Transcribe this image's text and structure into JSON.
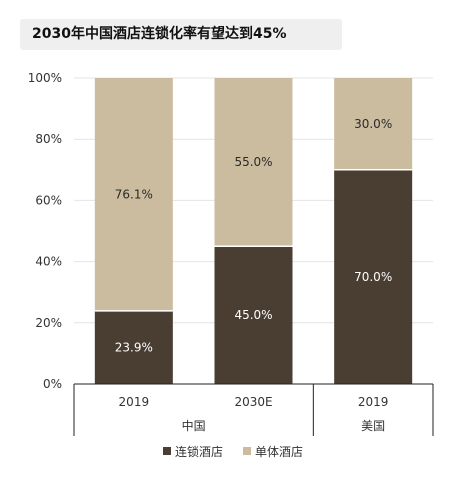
{
  "chart_data": {
    "type": "bar",
    "stacked": true,
    "title": "2030年中国酒店连锁化率有望达到45%",
    "categories": [
      "2019",
      "2030E",
      "2019"
    ],
    "groups": [
      {
        "label": "中国",
        "categories": [
          "2019",
          "2030E"
        ]
      },
      {
        "label": "美国",
        "categories": [
          "2019"
        ]
      }
    ],
    "series": [
      {
        "name": "连锁酒店",
        "values": [
          23.9,
          45.0,
          70.0
        ],
        "labels": [
          "23.9%",
          "45.0%",
          "70.0%"
        ],
        "color": "#4a3d31"
      },
      {
        "name": "单体酒店",
        "values": [
          76.1,
          55.0,
          30.0
        ],
        "labels": [
          "76.1%",
          "55.0%",
          "30.0%"
        ],
        "color": "#ccbc9f"
      }
    ],
    "yticks": [
      "0%",
      "20%",
      "40%",
      "60%",
      "80%",
      "100%"
    ],
    "ylim": [
      0,
      100
    ],
    "grid": true,
    "legend": "bottom"
  }
}
